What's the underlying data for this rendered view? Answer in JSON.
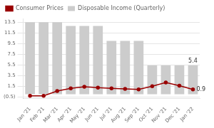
{
  "chart_data": {
    "type": "bar",
    "categories": [
      "Jan '21",
      "Feb '21",
      "Mar '21",
      "Apr '21",
      "May '21",
      "Jun '21",
      "Jul '21",
      "Aug '21",
      "Sep '21",
      "Oct '21",
      "Nov '21",
      "Dec '21",
      "Jan '22"
    ],
    "series": [
      {
        "name": "Disposable Income (Quarterly)",
        "type": "bar",
        "color": "#cccccc",
        "values": [
          13.5,
          13.5,
          13.5,
          12.8,
          12.8,
          12.8,
          10.0,
          10.0,
          10.0,
          5.4,
          5.4,
          5.4,
          5.4
        ]
      },
      {
        "name": "Consumer Prices",
        "type": "line",
        "color": "#990000",
        "marker": "circle",
        "values": [
          -0.3,
          -0.3,
          0.6,
          1.1,
          1.4,
          1.25,
          1.1,
          1.0,
          0.9,
          1.5,
          2.2,
          1.6,
          0.9
        ]
      }
    ],
    "ylim": [
      -0.75,
      14.2
    ],
    "yticks": [
      {
        "value": -0.5,
        "label": "(0.5)"
      },
      1.5,
      3.5,
      5.5,
      7.5,
      9.5,
      11.5,
      13.5
    ],
    "grid": true,
    "legend": "upper left",
    "annotations": [
      {
        "text": "5.4",
        "series": "Disposable Income (Quarterly)",
        "x": "Jan '22",
        "y": 5.4
      },
      {
        "text": "0.9",
        "series": "Consumer Prices",
        "x": "Jan '22",
        "y": 0.9
      }
    ]
  }
}
